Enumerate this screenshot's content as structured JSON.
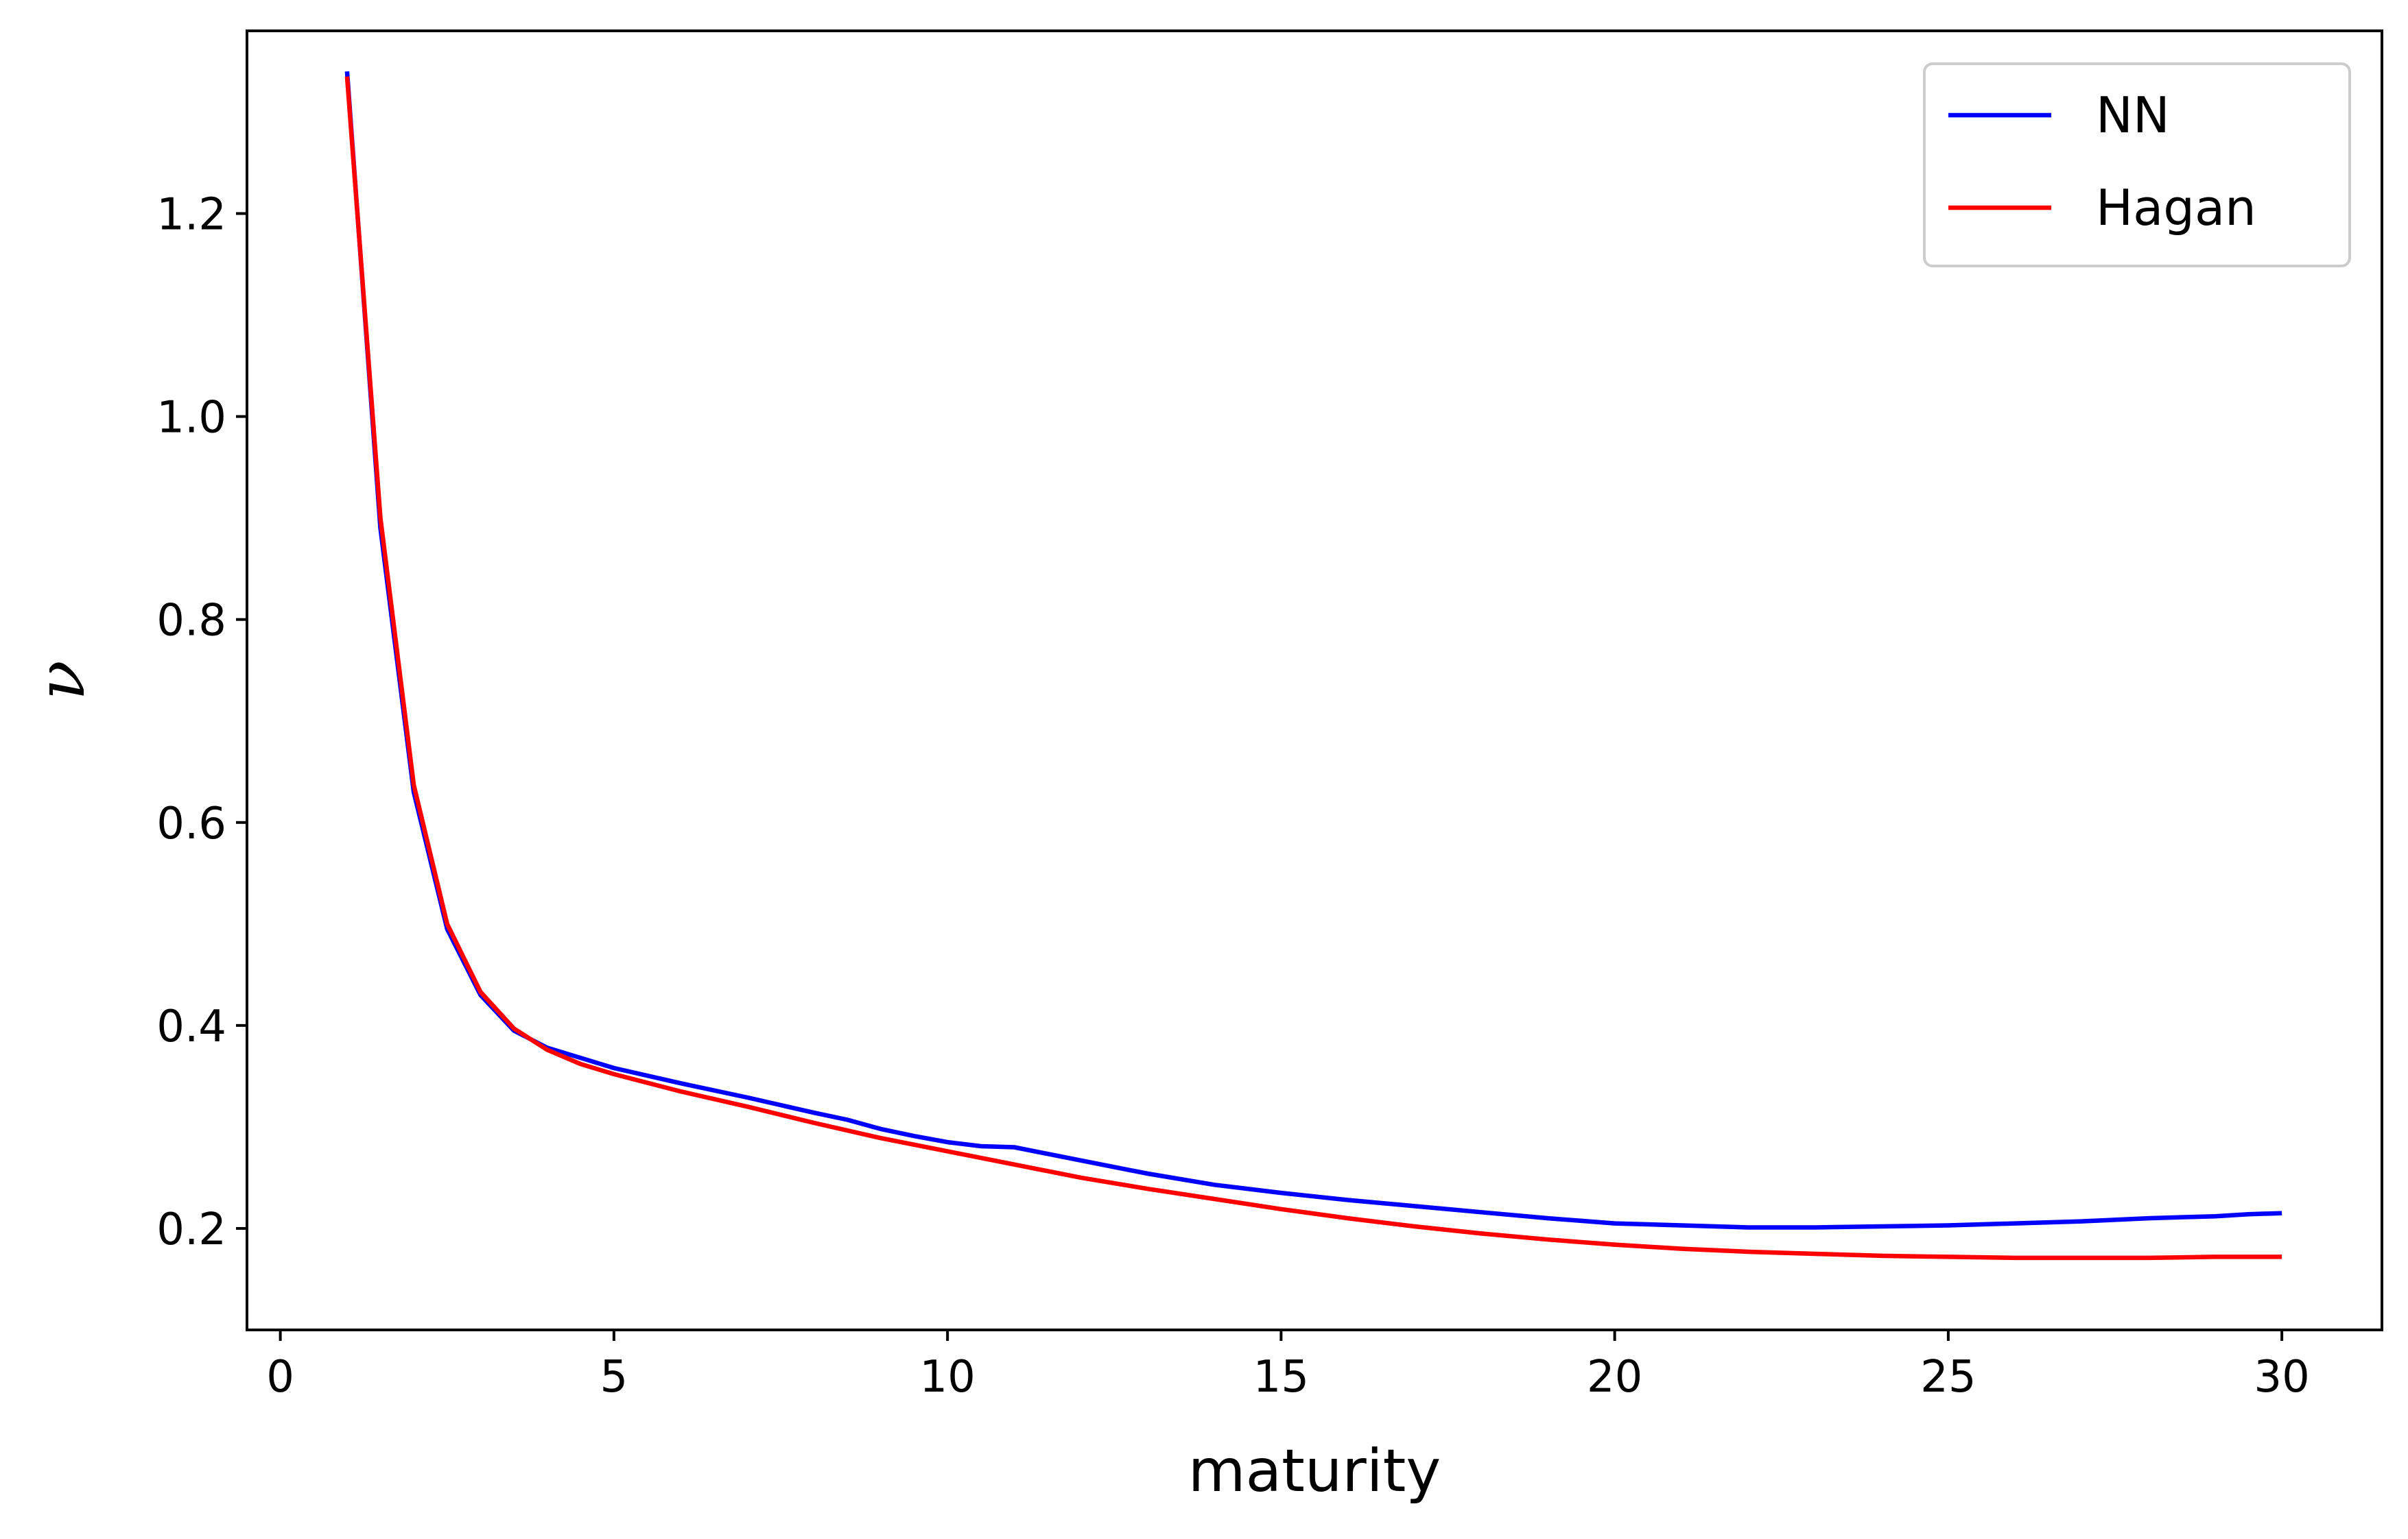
{
  "chart_data": {
    "type": "line",
    "xlabel": "maturity",
    "ylabel": "ν",
    "xlim": [
      -0.5,
      31.5
    ],
    "ylim": [
      0.1,
      1.38
    ],
    "xticks": [
      0,
      5,
      10,
      15,
      20,
      25,
      30
    ],
    "yticks": [
      0.2,
      0.4,
      0.6,
      0.8,
      1.0,
      1.2
    ],
    "xtick_labels": [
      "0",
      "5",
      "10",
      "15",
      "20",
      "25",
      "30"
    ],
    "ytick_labels": [
      "0.2",
      "0.4",
      "0.6",
      "0.8",
      "1.0",
      "1.2"
    ],
    "grid": false,
    "legend_position": "top-right",
    "series": [
      {
        "name": "NN",
        "color": "#0000ff",
        "x": [
          1,
          1.5,
          2,
          2.5,
          3,
          3.5,
          4,
          4.5,
          5,
          6,
          7,
          8,
          8.5,
          9,
          9.5,
          10,
          10.5,
          11,
          12,
          13,
          14,
          15,
          16,
          17,
          18,
          19,
          20,
          21,
          22,
          23,
          24,
          25,
          26,
          27,
          28,
          29,
          29.5,
          30
        ],
        "values": [
          1.34,
          0.89,
          0.63,
          0.495,
          0.43,
          0.395,
          0.378,
          0.368,
          0.358,
          0.343,
          0.329,
          0.314,
          0.307,
          0.298,
          0.291,
          0.285,
          0.281,
          0.28,
          0.267,
          0.254,
          0.243,
          0.235,
          0.228,
          0.222,
          0.216,
          0.21,
          0.205,
          0.203,
          0.201,
          0.201,
          0.202,
          0.203,
          0.205,
          0.207,
          0.21,
          0.212,
          0.214,
          0.215
        ]
      },
      {
        "name": "Hagan",
        "color": "#ff0000",
        "x": [
          1,
          1.5,
          2,
          2.5,
          3,
          3.5,
          4,
          4.5,
          5,
          6,
          7,
          8,
          9,
          10,
          11,
          12,
          13,
          14,
          15,
          16,
          17,
          18,
          19,
          20,
          21,
          22,
          23,
          24,
          25,
          26,
          27,
          28,
          29,
          30
        ],
        "values": [
          1.335,
          0.9,
          0.637,
          0.5,
          0.433,
          0.397,
          0.376,
          0.362,
          0.352,
          0.335,
          0.32,
          0.304,
          0.289,
          0.276,
          0.263,
          0.25,
          0.239,
          0.229,
          0.219,
          0.21,
          0.202,
          0.195,
          0.189,
          0.184,
          0.18,
          0.177,
          0.175,
          0.173,
          0.172,
          0.171,
          0.171,
          0.171,
          0.172,
          0.172
        ]
      }
    ]
  }
}
